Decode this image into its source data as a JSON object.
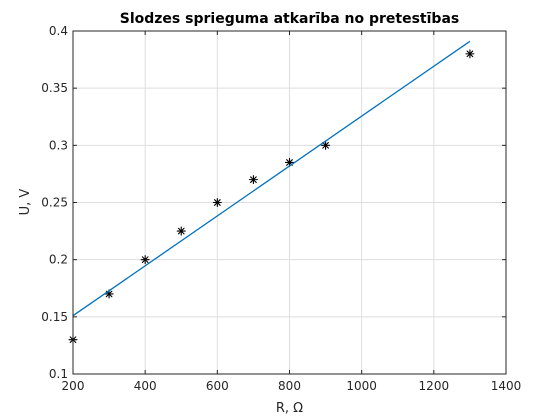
{
  "chart_data": {
    "type": "scatter",
    "title": "Slodzes sprieguma atkarība no pretestības",
    "xlabel": "R, Ω",
    "ylabel": "U, V",
    "xlim": [
      200,
      1400
    ],
    "ylim": [
      0.1,
      0.4
    ],
    "x_ticks": [
      "200",
      "400",
      "600",
      "800",
      "1000",
      "1200",
      "1400"
    ],
    "y_ticks": [
      "0.1",
      "0.15",
      "0.2",
      "0.25",
      "0.3",
      "0.35",
      "0.4"
    ],
    "grid": true,
    "legend": false,
    "series": [
      {
        "kind": "scatter",
        "marker": "asterisk",
        "color": "#000000",
        "x": [
          200,
          300,
          400,
          500,
          600,
          700,
          800,
          900,
          1300
        ],
        "y": [
          0.13,
          0.17,
          0.2,
          0.225,
          0.25,
          0.27,
          0.285,
          0.3,
          0.38
        ]
      },
      {
        "kind": "line",
        "color": "#0072bd",
        "x": [
          200,
          1300
        ],
        "y": [
          0.151,
          0.391
        ]
      }
    ]
  }
}
